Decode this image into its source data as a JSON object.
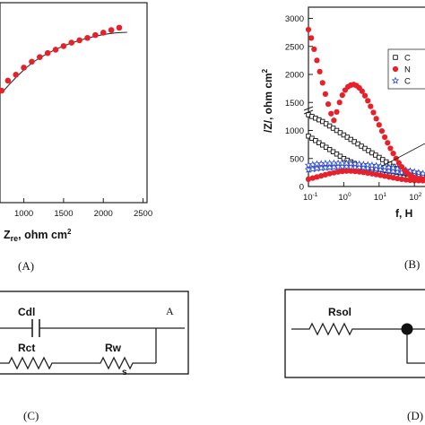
{
  "chart_data": [
    {
      "type": "scatter",
      "panel_label": "(A)",
      "xlabel_main": "Z",
      "xlabel_sub": "re",
      "xlabel_unit": ", ohm cm",
      "xlabel_sup": "2",
      "xticks": [
        "1000",
        "1500",
        "2000",
        "2500"
      ],
      "xlim": [
        700,
        2550
      ],
      "ylim": [
        0,
        1000
      ],
      "points_color": "#e8202a",
      "series": [
        {
          "x": [
            720,
            800,
            900,
            1000,
            1100,
            1200,
            1300,
            1400,
            1500,
            1600,
            1700,
            1800,
            1900,
            2000,
            2100,
            2200
          ],
          "y": [
            560,
            610,
            640,
            675,
            705,
            728,
            748,
            765,
            783,
            800,
            812,
            824,
            838,
            850,
            863,
            875
          ]
        }
      ],
      "fit_color": "#333333",
      "fit": {
        "x": [
          720,
          900,
          1100,
          1300,
          1500,
          1700,
          1900,
          2100,
          2300
        ],
        "y": [
          548,
          628,
          700,
          748,
          785,
          812,
          833,
          848,
          852
        ]
      }
    },
    {
      "type": "scatter",
      "panel_label": "(B)",
      "ylabel": "/Z/, ohm cm",
      "ylabel_sup": "2",
      "xlabel": "f, H",
      "yticks": [
        "0",
        "500",
        "1000",
        "1500",
        "2000",
        "2500",
        "3000"
      ],
      "ylim": [
        0,
        3200
      ],
      "xticks_base": "10",
      "xticks_exp": [
        "-1",
        "0",
        "1",
        "2"
      ],
      "xlim_log10": [
        -1,
        2.35
      ],
      "legend_placement": "right",
      "legend": [
        {
          "marker": "square-open",
          "color": "#111111",
          "text": "C"
        },
        {
          "marker": "circle-filled",
          "color": "#e8202a",
          "text": "N"
        },
        {
          "marker": "star-open",
          "color": "#2a47c9",
          "text": "C"
        }
      ],
      "series": [
        {
          "marker": "circle-filled",
          "color": "#e8202a",
          "logf": [
            -1.0,
            -0.92,
            -0.84,
            -0.76,
            -0.68,
            -0.6,
            -0.52,
            -0.44,
            -0.36,
            -0.28,
            -0.2,
            -0.12,
            -0.04,
            0.04,
            0.12,
            0.2,
            0.28,
            0.36,
            0.44,
            0.52,
            0.6,
            0.68,
            0.76,
            0.84,
            0.92,
            1.0,
            1.08,
            1.16,
            1.24,
            1.32,
            1.4,
            1.48,
            1.56,
            1.64,
            1.72,
            1.8,
            1.88,
            1.96,
            2.04,
            2.12,
            2.2,
            2.28
          ],
          "z": [
            2800,
            2650,
            2450,
            2250,
            2050,
            1850,
            1650,
            1470,
            1300,
            1180,
            1330,
            1500,
            1630,
            1720,
            1780,
            1810,
            1820,
            1800,
            1760,
            1700,
            1620,
            1530,
            1430,
            1320,
            1210,
            1100,
            990,
            880,
            780,
            680,
            590,
            500,
            420,
            350,
            290,
            240,
            200,
            170,
            150,
            140,
            135,
            130
          ]
        },
        {
          "marker": "square-open",
          "color": "#111111",
          "logf": [
            -1.0,
            -0.9,
            -0.8,
            -0.7,
            -0.6,
            -0.5,
            -0.4,
            -0.3,
            -0.2,
            -0.1,
            0.0,
            0.1,
            0.2,
            0.3,
            0.4,
            0.5,
            0.6,
            0.7,
            0.8,
            0.9,
            1.0,
            1.1,
            1.2,
            1.3,
            1.4,
            1.5,
            1.6,
            1.7,
            1.8,
            1.9,
            2.0,
            2.1,
            2.2,
            2.3
          ],
          "z": [
            1280,
            1250,
            1220,
            1190,
            1160,
            1120,
            1080,
            1040,
            1000,
            960,
            920,
            880,
            840,
            800,
            760,
            720,
            680,
            640,
            600,
            560,
            520,
            480,
            440,
            400,
            360,
            320,
            290,
            260,
            230,
            200,
            180,
            160,
            140,
            130
          ]
        },
        {
          "marker": "square-open",
          "color": "#111111",
          "logf": [
            -1.0,
            -0.9,
            -0.8,
            -0.7,
            -0.6,
            -0.5,
            -0.4,
            -0.3,
            -0.2,
            -0.1,
            0.0,
            0.1,
            0.2,
            0.3,
            0.4,
            0.5,
            0.6,
            0.7,
            0.8,
            0.9,
            1.0,
            1.1,
            1.2,
            1.3,
            1.4,
            1.5,
            1.6,
            1.7,
            1.8,
            1.9,
            2.0
          ],
          "z": [
            900,
            860,
            820,
            780,
            740,
            700,
            660,
            620,
            580,
            540,
            500,
            470,
            440,
            410,
            380,
            350,
            320,
            300,
            280,
            260,
            240,
            225,
            210,
            200,
            190,
            180,
            170,
            160,
            150,
            140,
            130
          ]
        },
        {
          "marker": "star-open",
          "color": "#2a47c9",
          "logf": [
            -1.0,
            -0.88,
            -0.76,
            -0.64,
            -0.52,
            -0.4,
            -0.28,
            -0.16,
            -0.04,
            0.08,
            0.2,
            0.32,
            0.44,
            0.56,
            0.68,
            0.8,
            0.92,
            1.04,
            1.16,
            1.28,
            1.4,
            1.52,
            1.64,
            1.76,
            1.88,
            2.0,
            2.12,
            2.24
          ],
          "z": [
            300,
            310,
            320,
            330,
            335,
            340,
            345,
            350,
            352,
            352,
            350,
            345,
            340,
            335,
            328,
            320,
            310,
            300,
            290,
            280,
            270,
            260,
            250,
            240,
            230,
            220,
            210,
            200
          ]
        },
        {
          "marker": "star-open",
          "color": "#2a47c9",
          "logf": [
            -1.0,
            -0.88,
            -0.76,
            -0.64,
            -0.52,
            -0.4,
            -0.28,
            -0.16,
            -0.04,
            0.08,
            0.2,
            0.32,
            0.44,
            0.56,
            0.68,
            0.8,
            0.92,
            1.04,
            1.16,
            1.28,
            1.4,
            1.52,
            1.64,
            1.76,
            1.88,
            2.0,
            2.12,
            2.24
          ],
          "z": [
            380,
            390,
            400,
            405,
            410,
            412,
            414,
            415,
            414,
            412,
            408,
            404,
            398,
            392,
            385,
            378,
            370,
            360,
            350,
            340,
            330,
            318,
            305,
            290,
            275,
            260,
            245,
            230
          ]
        },
        {
          "marker": "circle-filled",
          "color": "#e8202a",
          "logf": [
            -1.0,
            -0.88,
            -0.76,
            -0.64,
            -0.52,
            -0.4,
            -0.28,
            -0.16,
            -0.04,
            0.08,
            0.2,
            0.32,
            0.44,
            0.56,
            0.68,
            0.8,
            0.92,
            1.04,
            1.16,
            1.28,
            1.4,
            1.52,
            1.64,
            1.76,
            1.88,
            2.0,
            2.12,
            2.24
          ],
          "z": [
            130,
            150,
            170,
            190,
            210,
            230,
            245,
            260,
            270,
            275,
            275,
            270,
            262,
            252,
            240,
            228,
            214,
            200,
            186,
            170,
            156,
            142,
            130,
            120,
            112,
            108,
            105,
            103
          ]
        }
      ]
    }
  ],
  "circuits": {
    "c_label": "(C)",
    "c_corner": "A",
    "c_cdl": "Cdl",
    "c_rct": "Rct",
    "c_rw": "Rw",
    "c_ws": "s",
    "d_label": "(D)",
    "d_rsol": "Rsol"
  }
}
